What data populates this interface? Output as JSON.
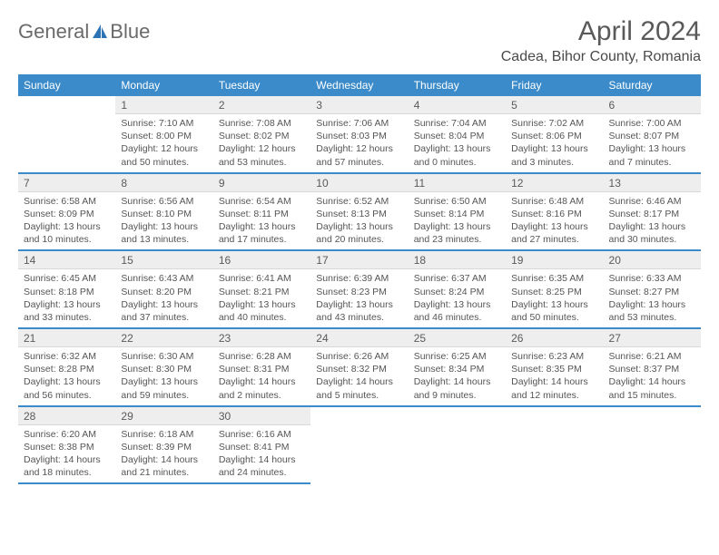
{
  "brand": {
    "part1": "General",
    "part2": "Blue"
  },
  "title": "April 2024",
  "location": "Cadea, Bihor County, Romania",
  "colors": {
    "accent": "#3b8bca",
    "headerText": "#ffffff",
    "daynumBg": "#eeeeee",
    "text": "#4a4a4a"
  },
  "weekdays": [
    "Sunday",
    "Monday",
    "Tuesday",
    "Wednesday",
    "Thursday",
    "Friday",
    "Saturday"
  ],
  "weeks": [
    [
      null,
      {
        "n": "1",
        "sr": "7:10 AM",
        "ss": "8:00 PM",
        "dl": "12 hours and 50 minutes."
      },
      {
        "n": "2",
        "sr": "7:08 AM",
        "ss": "8:02 PM",
        "dl": "12 hours and 53 minutes."
      },
      {
        "n": "3",
        "sr": "7:06 AM",
        "ss": "8:03 PM",
        "dl": "12 hours and 57 minutes."
      },
      {
        "n": "4",
        "sr": "7:04 AM",
        "ss": "8:04 PM",
        "dl": "13 hours and 0 minutes."
      },
      {
        "n": "5",
        "sr": "7:02 AM",
        "ss": "8:06 PM",
        "dl": "13 hours and 3 minutes."
      },
      {
        "n": "6",
        "sr": "7:00 AM",
        "ss": "8:07 PM",
        "dl": "13 hours and 7 minutes."
      }
    ],
    [
      {
        "n": "7",
        "sr": "6:58 AM",
        "ss": "8:09 PM",
        "dl": "13 hours and 10 minutes."
      },
      {
        "n": "8",
        "sr": "6:56 AM",
        "ss": "8:10 PM",
        "dl": "13 hours and 13 minutes."
      },
      {
        "n": "9",
        "sr": "6:54 AM",
        "ss": "8:11 PM",
        "dl": "13 hours and 17 minutes."
      },
      {
        "n": "10",
        "sr": "6:52 AM",
        "ss": "8:13 PM",
        "dl": "13 hours and 20 minutes."
      },
      {
        "n": "11",
        "sr": "6:50 AM",
        "ss": "8:14 PM",
        "dl": "13 hours and 23 minutes."
      },
      {
        "n": "12",
        "sr": "6:48 AM",
        "ss": "8:16 PM",
        "dl": "13 hours and 27 minutes."
      },
      {
        "n": "13",
        "sr": "6:46 AM",
        "ss": "8:17 PM",
        "dl": "13 hours and 30 minutes."
      }
    ],
    [
      {
        "n": "14",
        "sr": "6:45 AM",
        "ss": "8:18 PM",
        "dl": "13 hours and 33 minutes."
      },
      {
        "n": "15",
        "sr": "6:43 AM",
        "ss": "8:20 PM",
        "dl": "13 hours and 37 minutes."
      },
      {
        "n": "16",
        "sr": "6:41 AM",
        "ss": "8:21 PM",
        "dl": "13 hours and 40 minutes."
      },
      {
        "n": "17",
        "sr": "6:39 AM",
        "ss": "8:23 PM",
        "dl": "13 hours and 43 minutes."
      },
      {
        "n": "18",
        "sr": "6:37 AM",
        "ss": "8:24 PM",
        "dl": "13 hours and 46 minutes."
      },
      {
        "n": "19",
        "sr": "6:35 AM",
        "ss": "8:25 PM",
        "dl": "13 hours and 50 minutes."
      },
      {
        "n": "20",
        "sr": "6:33 AM",
        "ss": "8:27 PM",
        "dl": "13 hours and 53 minutes."
      }
    ],
    [
      {
        "n": "21",
        "sr": "6:32 AM",
        "ss": "8:28 PM",
        "dl": "13 hours and 56 minutes."
      },
      {
        "n": "22",
        "sr": "6:30 AM",
        "ss": "8:30 PM",
        "dl": "13 hours and 59 minutes."
      },
      {
        "n": "23",
        "sr": "6:28 AM",
        "ss": "8:31 PM",
        "dl": "14 hours and 2 minutes."
      },
      {
        "n": "24",
        "sr": "6:26 AM",
        "ss": "8:32 PM",
        "dl": "14 hours and 5 minutes."
      },
      {
        "n": "25",
        "sr": "6:25 AM",
        "ss": "8:34 PM",
        "dl": "14 hours and 9 minutes."
      },
      {
        "n": "26",
        "sr": "6:23 AM",
        "ss": "8:35 PM",
        "dl": "14 hours and 12 minutes."
      },
      {
        "n": "27",
        "sr": "6:21 AM",
        "ss": "8:37 PM",
        "dl": "14 hours and 15 minutes."
      }
    ],
    [
      {
        "n": "28",
        "sr": "6:20 AM",
        "ss": "8:38 PM",
        "dl": "14 hours and 18 minutes."
      },
      {
        "n": "29",
        "sr": "6:18 AM",
        "ss": "8:39 PM",
        "dl": "14 hours and 21 minutes."
      },
      {
        "n": "30",
        "sr": "6:16 AM",
        "ss": "8:41 PM",
        "dl": "14 hours and 24 minutes."
      },
      null,
      null,
      null,
      null
    ]
  ],
  "labels": {
    "sunrise": "Sunrise:",
    "sunset": "Sunset:",
    "daylight": "Daylight:"
  }
}
